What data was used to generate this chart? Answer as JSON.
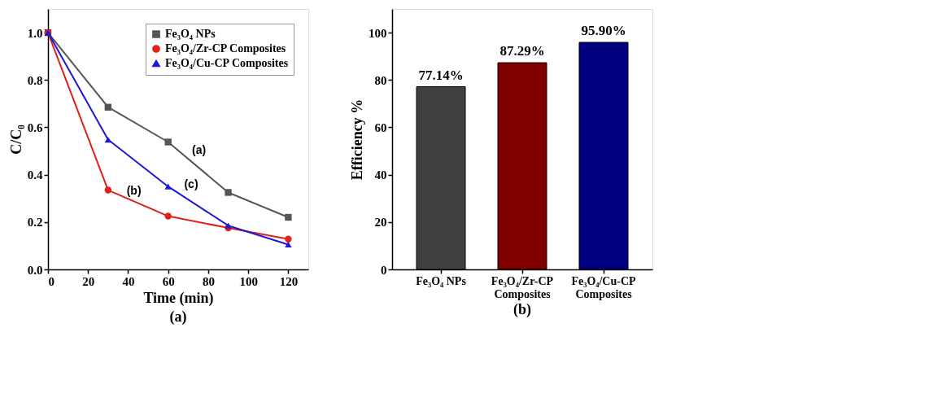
{
  "chart_data": [
    {
      "type": "line",
      "title": "(a)",
      "xlabel": "Time (min)",
      "ylabel": "C/C₀",
      "x": [
        0,
        30,
        60,
        90,
        120
      ],
      "series": [
        {
          "name": "Fe₃O₄ NPs",
          "color": "#555555",
          "marker": "square",
          "values": [
            1.0,
            0.685,
            0.538,
            0.325,
            0.22
          ]
        },
        {
          "name": "Fe₃O₄/Zr-CP Composites",
          "color": "#e0201b",
          "marker": "circle",
          "values": [
            1.0,
            0.335,
            0.225,
            0.175,
            0.128
          ]
        },
        {
          "name": "Fe₃O₄/Cu-CP Composites",
          "color": "#1a1ad6",
          "marker": "triangle",
          "values": [
            1.0,
            0.548,
            0.35,
            0.185,
            0.105
          ]
        }
      ],
      "xlim": [
        0,
        130
      ],
      "xticks": [
        0,
        20,
        40,
        60,
        80,
        100,
        120
      ],
      "ylim": [
        0,
        1.1
      ],
      "yticks": [
        {
          "value": 0,
          "label": "0.0"
        },
        0.2,
        0.4,
        0.6,
        0.8,
        {
          "value": 1,
          "label": "1.0"
        }
      ],
      "annotations": [
        "(a)",
        "(b)",
        "(c)"
      ],
      "legend": "top right",
      "grid": false,
      "line_style": "solid"
    },
    {
      "type": "bar",
      "title": "(b)",
      "ylabel": "Efficiency %",
      "categories": [
        "Fe₃O₄ NPs",
        "Fe₃O₄/Zr-CP Composites",
        "Fe₃O₄/Cu-CP Composites"
      ],
      "values": [
        77.14,
        87.29,
        95.9
      ],
      "colors": [
        "#404040",
        "#800000",
        "#000080"
      ],
      "value_labels": [
        "77.14%",
        "87.29%",
        "95.90%"
      ],
      "ylim": [
        0,
        110
      ],
      "yticks": [
        0,
        20,
        40,
        60,
        80,
        100
      ],
      "grid": false
    }
  ]
}
